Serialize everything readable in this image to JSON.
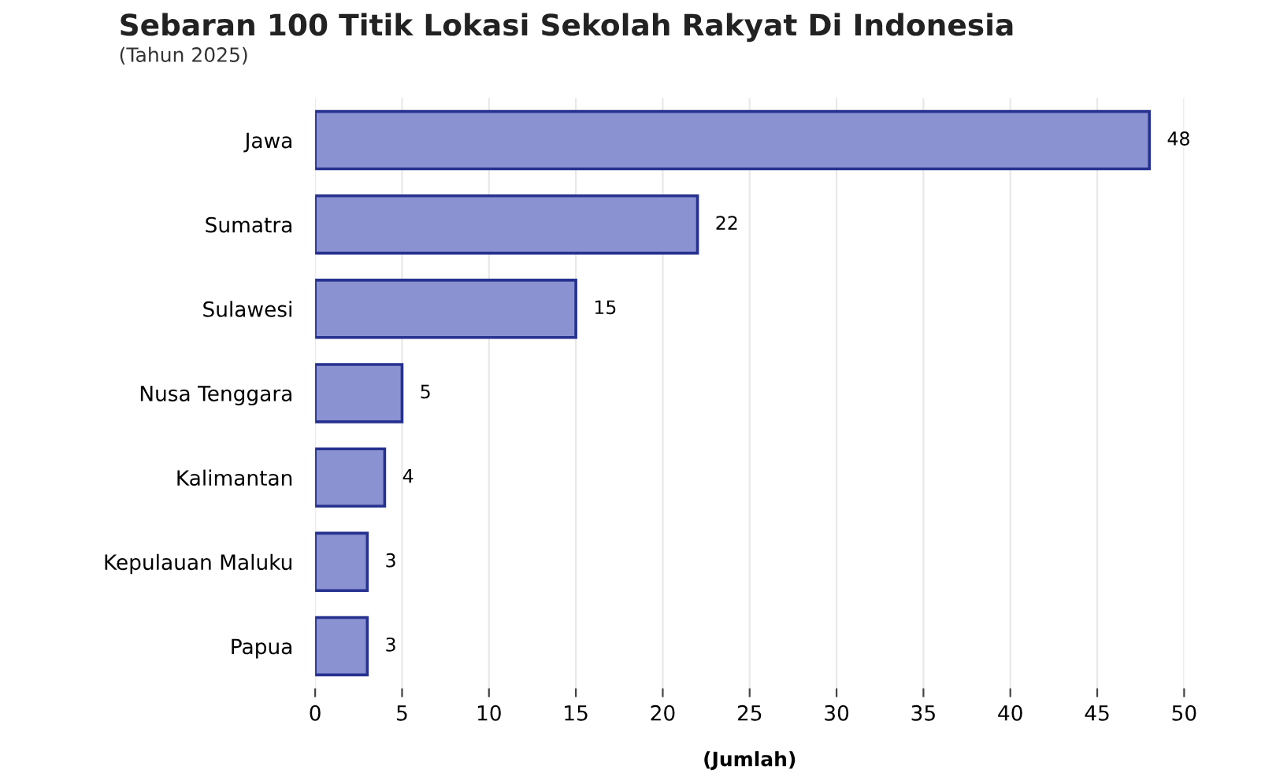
{
  "chart_data": {
    "type": "bar",
    "orientation": "horizontal",
    "title": "Sebaran 100 Titik Lokasi Sekolah Rakyat Di Indonesia",
    "subtitle": "(Tahun 2025)",
    "xlabel": "(Jumlah)",
    "categories": [
      "Jawa",
      "Sumatra",
      "Sulawesi",
      "Nusa Tenggara",
      "Kalimantan",
      "Kepulauan Maluku",
      "Papua"
    ],
    "values": [
      48,
      22,
      15,
      5,
      4,
      3,
      3
    ],
    "color": "#8a92d2",
    "xlim": [
      0,
      50
    ],
    "xticks": [
      0,
      5,
      10,
      15,
      20,
      25,
      30,
      35,
      40,
      45,
      50
    ],
    "grid": "x",
    "data_labels": true
  }
}
